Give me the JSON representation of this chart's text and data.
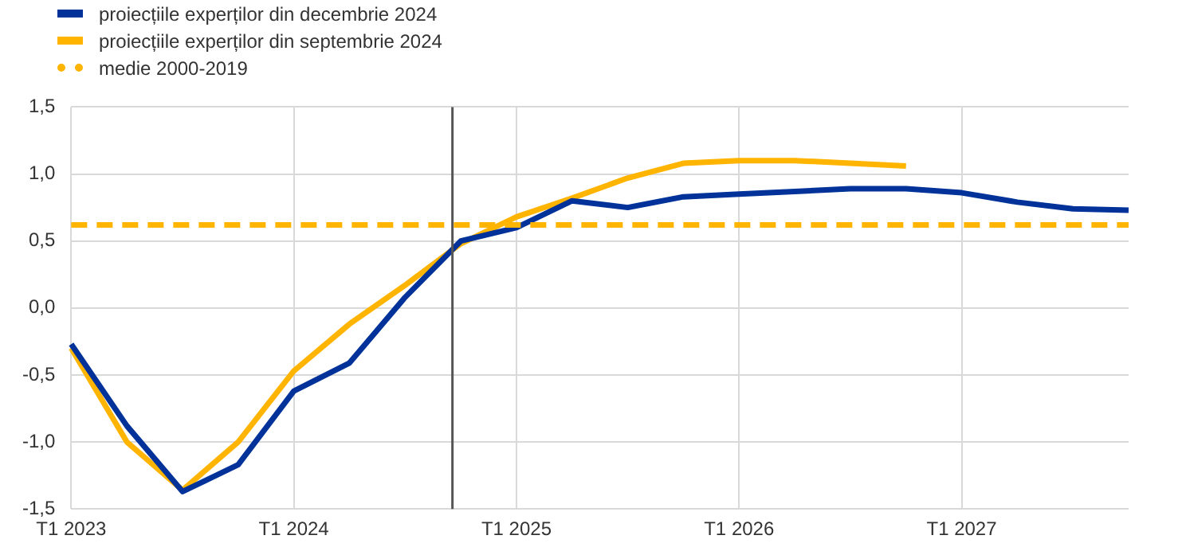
{
  "chart_data": {
    "type": "line",
    "categories": [
      "T1 2023",
      null,
      null,
      null,
      "T1 2024",
      null,
      null,
      null,
      "T1 2025",
      null,
      null,
      null,
      "T1 2026",
      null,
      null,
      null,
      "T1 2027",
      null,
      null,
      null
    ],
    "series": [
      {
        "name": "proiecțiile experților din decembrie 2024",
        "color": "#003299",
        "values": [
          -0.27,
          -0.88,
          -1.37,
          -1.17,
          -0.62,
          -0.41,
          0.08,
          0.5,
          0.6,
          0.8,
          0.75,
          0.83,
          0.85,
          0.87,
          0.89,
          0.89,
          0.86,
          0.79,
          0.74,
          0.73
        ]
      },
      {
        "name": "proiecțiile experților din septembrie 2024",
        "color": "#ffb400",
        "values": [
          -0.3,
          -1.0,
          -1.36,
          -1.0,
          -0.47,
          -0.12,
          0.17,
          0.48,
          0.68,
          0.82,
          0.97,
          1.08,
          1.1,
          1.1,
          1.08,
          1.06,
          null,
          null,
          null,
          null
        ]
      }
    ],
    "ylim": [
      -1.5,
      1.5
    ],
    "yticks": [
      {
        "value": -1.5,
        "label": "-1,5"
      },
      {
        "value": -1,
        "label": "-1,0"
      },
      {
        "value": -0.5,
        "label": "-0,5"
      },
      {
        "value": 0,
        "label": "0,0"
      },
      {
        "value": 0.5,
        "label": "0,5"
      },
      {
        "value": 1,
        "label": "1,0"
      },
      {
        "value": 1.5,
        "label": "1,5"
      }
    ],
    "ref_lines": [
      {
        "axis": "y",
        "value": 0.62,
        "label": "medie 2000-2019",
        "color": "#ffb400",
        "line_style": "dashed"
      }
    ],
    "grid": true,
    "legend": "top left",
    "line_style": "solid",
    "marker": "none"
  }
}
